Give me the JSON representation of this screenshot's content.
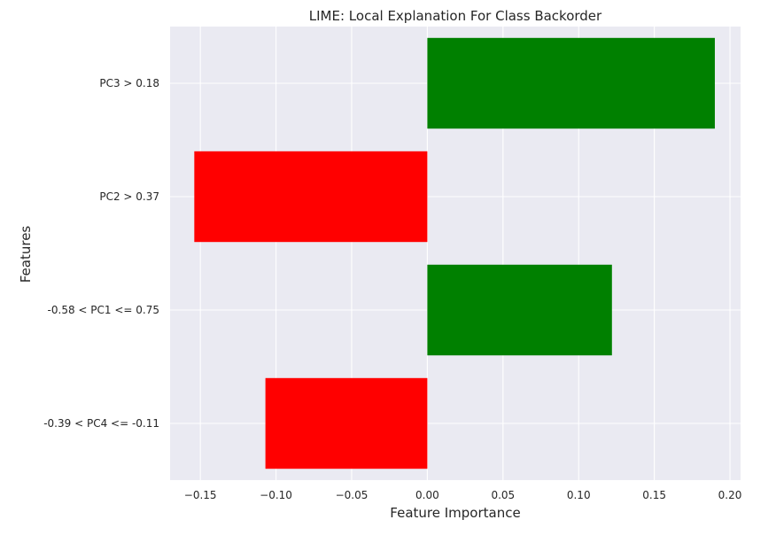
{
  "chart_data": {
    "type": "bar",
    "orientation": "horizontal",
    "title": "LIME: Local Explanation For Class Backorder",
    "xlabel": "Feature Importance",
    "ylabel": "Features",
    "categories": [
      "PC3 > 0.18",
      "PC2 > 0.37",
      "-0.58 < PC1 <= 0.75",
      "-0.39 < PC4 <= -0.11"
    ],
    "values": [
      0.19,
      -0.154,
      0.122,
      -0.107
    ],
    "xlim": [
      -0.17,
      0.207
    ],
    "xticks": [
      -0.15,
      -0.1,
      -0.05,
      0.0,
      0.05,
      0.1,
      0.15,
      0.2
    ],
    "xtick_labels": [
      "−0.15",
      "−0.10",
      "−0.05",
      "0.00",
      "0.05",
      "0.10",
      "0.15",
      "0.20"
    ],
    "colors": {
      "positive": "#008000",
      "negative": "#ff0000",
      "plot_background": "#eaeaf2",
      "grid": "#ffffff"
    },
    "grid": true,
    "legend": false
  }
}
